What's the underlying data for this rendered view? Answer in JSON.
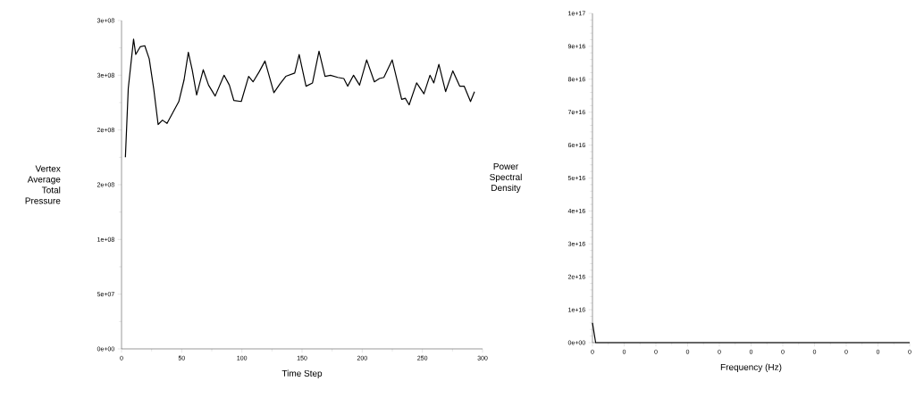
{
  "chart_data": [
    {
      "type": "line",
      "xlabel": "Time Step",
      "ylabel": "Vertex Average Total Pressure",
      "color": "#000000",
      "grid": false,
      "marker": "none",
      "line_style": "solid",
      "x": [
        3.2,
        5.6,
        10,
        11.8,
        15.5,
        19.3,
        23,
        26.7,
        30.4,
        34,
        37.8,
        42.7,
        47.6,
        52,
        55.5,
        58.7,
        62.4,
        67.9,
        72.3,
        77.8,
        85.2,
        89.6,
        93.3,
        99.5,
        105.6,
        109.3,
        114.3,
        119.2,
        126.6,
        131.6,
        136.5,
        143.9,
        147.6,
        153.3,
        158.7,
        164.1,
        169.1,
        173.6,
        179.7,
        184.7,
        187.9,
        192.8,
        197.8,
        203.7,
        210.1,
        214.3,
        218,
        224.9,
        232.8,
        235.8,
        239,
        245.2,
        251.3,
        256.3,
        259.5,
        263.7,
        269.3,
        275.3,
        281,
        284.7,
        290,
        293.3
      ],
      "values": [
        175000000.0,
        238000000.0,
        283000000.0,
        269000000.0,
        276000000.0,
        277000000.0,
        265000000.0,
        238000000.0,
        205000000.0,
        209000000.0,
        206000000.0,
        216000000.0,
        226000000.0,
        246000000.0,
        271000000.0,
        255000000.0,
        232000000.0,
        255000000.0,
        241000000.0,
        231000000.0,
        250000000.0,
        241000000.0,
        227000000.0,
        226000000.0,
        249000000.0,
        244000000.0,
        253000000.0,
        263000000.0,
        234000000.0,
        242000000.0,
        249000000.0,
        252000000.0,
        269000000.0,
        240000000.0,
        243000000.0,
        272000000.0,
        249000000.0,
        250000000.0,
        248000000.0,
        247000000.0,
        240000000.0,
        250000000.0,
        241000000.0,
        264000000.0,
        244000000.0,
        247000000.0,
        248000000.0,
        264000000.0,
        228000000.0,
        229000000.0,
        223000000.0,
        243000000.0,
        233000000.0,
        250000000.0,
        243000000.0,
        260000000.0,
        235000000.0,
        254000000.0,
        240000000.0,
        240000000.0,
        226000000.0,
        235000000.0
      ],
      "xlim": [
        0,
        300
      ],
      "xticks": [
        0,
        50,
        100,
        150,
        200,
        250,
        300
      ],
      "ylim": [
        0,
        300000000.0
      ],
      "yticks": [
        {
          "value": 0,
          "label": "0e+00"
        },
        {
          "value": 50000000.0,
          "label": "5e+07"
        },
        {
          "value": 100000000.0,
          "label": "1e+08"
        },
        {
          "value": 150000000.0,
          "label": "2e+08"
        },
        {
          "value": 200000000.0,
          "label": "2e+08"
        },
        {
          "value": 250000000.0,
          "label": "3e+08"
        },
        {
          "value": 300000000.0,
          "label": "3e+08"
        }
      ]
    },
    {
      "type": "line",
      "xlabel": "Frequency (Hz)",
      "ylabel": "Power Spectral Density",
      "color": "#000000",
      "grid": false,
      "marker": "none",
      "line_style": "solid",
      "categories": [
        "0",
        null,
        null,
        null,
        null,
        null,
        null,
        null,
        null,
        null,
        "0",
        null,
        null,
        null,
        null,
        null,
        null,
        null,
        null,
        null,
        "0",
        null,
        null,
        null,
        null,
        null,
        null,
        null,
        null,
        null,
        "0",
        null,
        null,
        null,
        null,
        null,
        null,
        null,
        null,
        null,
        "0",
        null,
        null,
        null,
        null,
        null,
        null,
        null,
        null,
        null,
        "0",
        null,
        null,
        null,
        null,
        null,
        null,
        null,
        null,
        null,
        "0",
        null,
        null,
        null,
        null,
        null,
        null,
        null,
        null,
        null,
        "0",
        null,
        null,
        null,
        null,
        null,
        null,
        null,
        null,
        null,
        "0",
        null,
        null,
        null,
        null,
        null,
        null,
        null,
        null,
        null,
        "0",
        null,
        null,
        null,
        null,
        null,
        null,
        null,
        null,
        null,
        "0"
      ],
      "values": [
        6000000000000000.0,
        0,
        0,
        0,
        0,
        0,
        0,
        0,
        0,
        0,
        0,
        0,
        0,
        0,
        0,
        0,
        0,
        0,
        0,
        0,
        0,
        0,
        0,
        0,
        0,
        0,
        0,
        0,
        0,
        0,
        0,
        0,
        0,
        0,
        0,
        0,
        0,
        0,
        0,
        0,
        0,
        0,
        0,
        0,
        0,
        0,
        0,
        0,
        0,
        0,
        0,
        0,
        0,
        0,
        0,
        0,
        0,
        0,
        0,
        0,
        0,
        0,
        0,
        0,
        0,
        0,
        0,
        0,
        0,
        0,
        0,
        0,
        0,
        0,
        0,
        0,
        0,
        0,
        0,
        0,
        0,
        0,
        0,
        0,
        0,
        0,
        0,
        0,
        0,
        0,
        0,
        0,
        0,
        0,
        0,
        0,
        0,
        0,
        0,
        0,
        0
      ],
      "ylim": [
        0,
        1e+17
      ],
      "yticks": [
        {
          "value": 0,
          "label": "0e+00"
        },
        {
          "value": 1e+16,
          "label": "1e+16"
        },
        {
          "value": 2e+16,
          "label": "2e+16"
        },
        {
          "value": 3e+16,
          "label": "3e+16"
        },
        {
          "value": 4e+16,
          "label": "4e+16"
        },
        {
          "value": 5e+16,
          "label": "5e+16"
        },
        {
          "value": 6e+16,
          "label": "6e+16"
        },
        {
          "value": 7e+16,
          "label": "7e+16"
        },
        {
          "value": 8e+16,
          "label": "8e+16"
        },
        {
          "value": 9e+16,
          "label": "9e+16"
        },
        {
          "value": 1e+17,
          "label": "1e+17"
        }
      ]
    }
  ]
}
